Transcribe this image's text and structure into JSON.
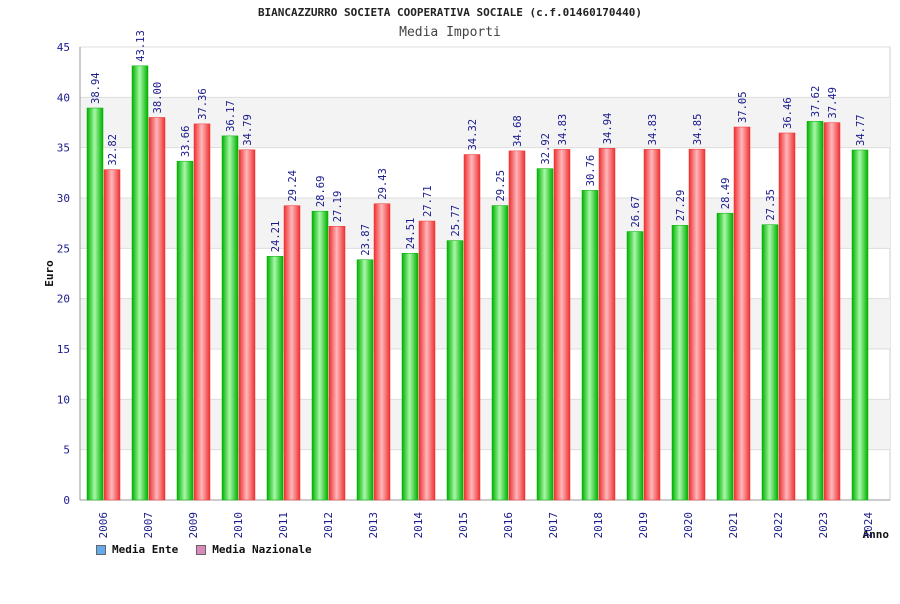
{
  "title": "BIANCAZZURRO SOCIETA COOPERATIVA SOCIALE (c.f.01460170440)",
  "subtitle": "Media Importi",
  "colors": {
    "ente": "#00b000",
    "ente_light": "#a8f8a8",
    "nazionale": "#ee3030",
    "nazionale_light": "#ffb8bc",
    "axis_text": "#1a1a8c",
    "value_text": "#1a1a8c",
    "grid_band": "#f3f3f3",
    "legend_ente": "#66aaee",
    "legend_nazionale": "#dd88bb"
  },
  "legend": {
    "ente_label": "Media Ente",
    "nazionale_label": "Media Nazionale"
  },
  "chart_data": {
    "type": "bar",
    "title": "BIANCAZZURRO SOCIETA COOPERATIVA SOCIALE (c.f.01460170440)",
    "subtitle": "Media Importi",
    "xlabel": "Anno",
    "ylabel": "Euro",
    "ylim": [
      0,
      45
    ],
    "yticks": [
      0,
      5,
      10,
      15,
      20,
      25,
      30,
      35,
      40,
      45
    ],
    "categories": [
      "2006",
      "2007",
      "2009",
      "2010",
      "2011",
      "2012",
      "2013",
      "2014",
      "2015",
      "2016",
      "2017",
      "2018",
      "2019",
      "2020",
      "2021",
      "2022",
      "2023",
      "2024"
    ],
    "series": [
      {
        "name": "Media Ente",
        "values": [
          38.94,
          43.13,
          33.66,
          36.17,
          24.21,
          28.69,
          23.87,
          24.51,
          25.77,
          29.25,
          32.92,
          30.76,
          26.67,
          27.29,
          28.49,
          27.35,
          37.62,
          34.77
        ],
        "labels": [
          "38.94",
          "43.13",
          "33.66",
          "36.17",
          "24.21",
          "28.69",
          "23.87",
          "24.51",
          "25.77",
          "29.25",
          "32.92",
          "30.76",
          "26.67",
          "27.29",
          "28.49",
          "27.35",
          "37.62",
          "34.77"
        ]
      },
      {
        "name": "Media Nazionale",
        "values": [
          32.82,
          38.0,
          37.36,
          34.79,
          29.24,
          27.19,
          29.43,
          27.71,
          34.32,
          34.68,
          34.83,
          34.94,
          34.83,
          34.85,
          37.05,
          36.46,
          37.49,
          null
        ],
        "labels": [
          "32.82",
          "38.00",
          "37.36",
          "34.79",
          "29.24",
          "27.19",
          "29.43",
          "27.71",
          "34.32",
          "34.68",
          "34.83",
          "34.94",
          "34.83",
          "34.85",
          "37.05",
          "36.46",
          "37.49",
          null
        ]
      }
    ],
    "grid": true,
    "legend_position": "bottom-left"
  }
}
